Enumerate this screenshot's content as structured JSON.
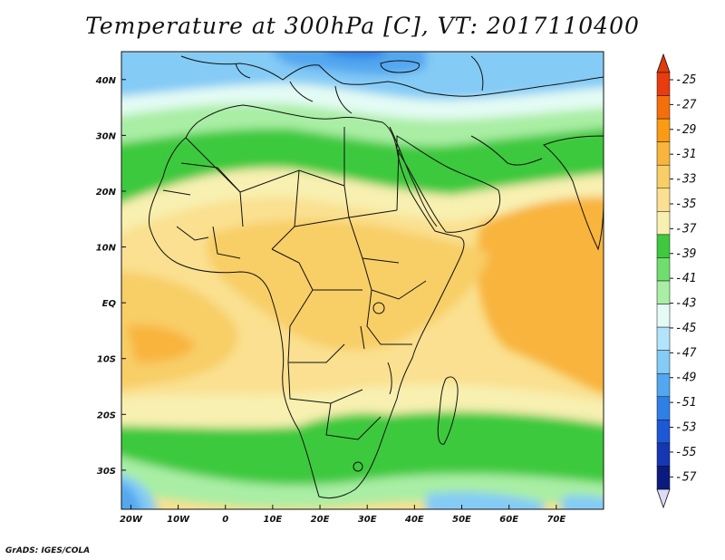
{
  "title": "Temperature at 300hPa [C], VT: 2017110400",
  "credit": "GrADS: IGES/COLA",
  "map": {
    "lon_range": [
      -22,
      80
    ],
    "lat_range": [
      -37,
      45
    ],
    "lon_ticks": [
      {
        "value": -20,
        "label": "20W"
      },
      {
        "value": -10,
        "label": "10W"
      },
      {
        "value": 0,
        "label": "0"
      },
      {
        "value": 10,
        "label": "10E"
      },
      {
        "value": 20,
        "label": "20E"
      },
      {
        "value": 30,
        "label": "30E"
      },
      {
        "value": 40,
        "label": "40E"
      },
      {
        "value": 50,
        "label": "50E"
      },
      {
        "value": 60,
        "label": "60E"
      },
      {
        "value": 70,
        "label": "70E"
      }
    ],
    "lat_ticks": [
      {
        "value": 40,
        "label": "40N"
      },
      {
        "value": 30,
        "label": "30N"
      },
      {
        "value": 20,
        "label": "20N"
      },
      {
        "value": 10,
        "label": "10N"
      },
      {
        "value": 0,
        "label": "EQ"
      },
      {
        "value": -10,
        "label": "10S"
      },
      {
        "value": -20,
        "label": "20S"
      },
      {
        "value": -30,
        "label": "30S"
      }
    ]
  },
  "colorbar": {
    "labels": [
      "-25",
      "-27",
      "-29",
      "-31",
      "-33",
      "-35",
      "-37",
      "-39",
      "-41",
      "-43",
      "-45",
      "-47",
      "-49",
      "-51",
      "-53",
      "-55",
      "-57"
    ],
    "colors": [
      "#e83b0f",
      "#f46f0b",
      "#fa9b12",
      "#f8b43c",
      "#f8ce66",
      "#fae090",
      "#f8f0b0",
      "#3ec93e",
      "#6fde6f",
      "#a9eea4",
      "#e3fbf4",
      "#b4e4fb",
      "#84cbf6",
      "#52a7ef",
      "#2e7fe8",
      "#1d58d6",
      "#1636b4",
      "#0c1a80"
    ],
    "end_colors": {
      "top": "#e23a0e",
      "bottom": "#dcdcf8"
    }
  }
}
